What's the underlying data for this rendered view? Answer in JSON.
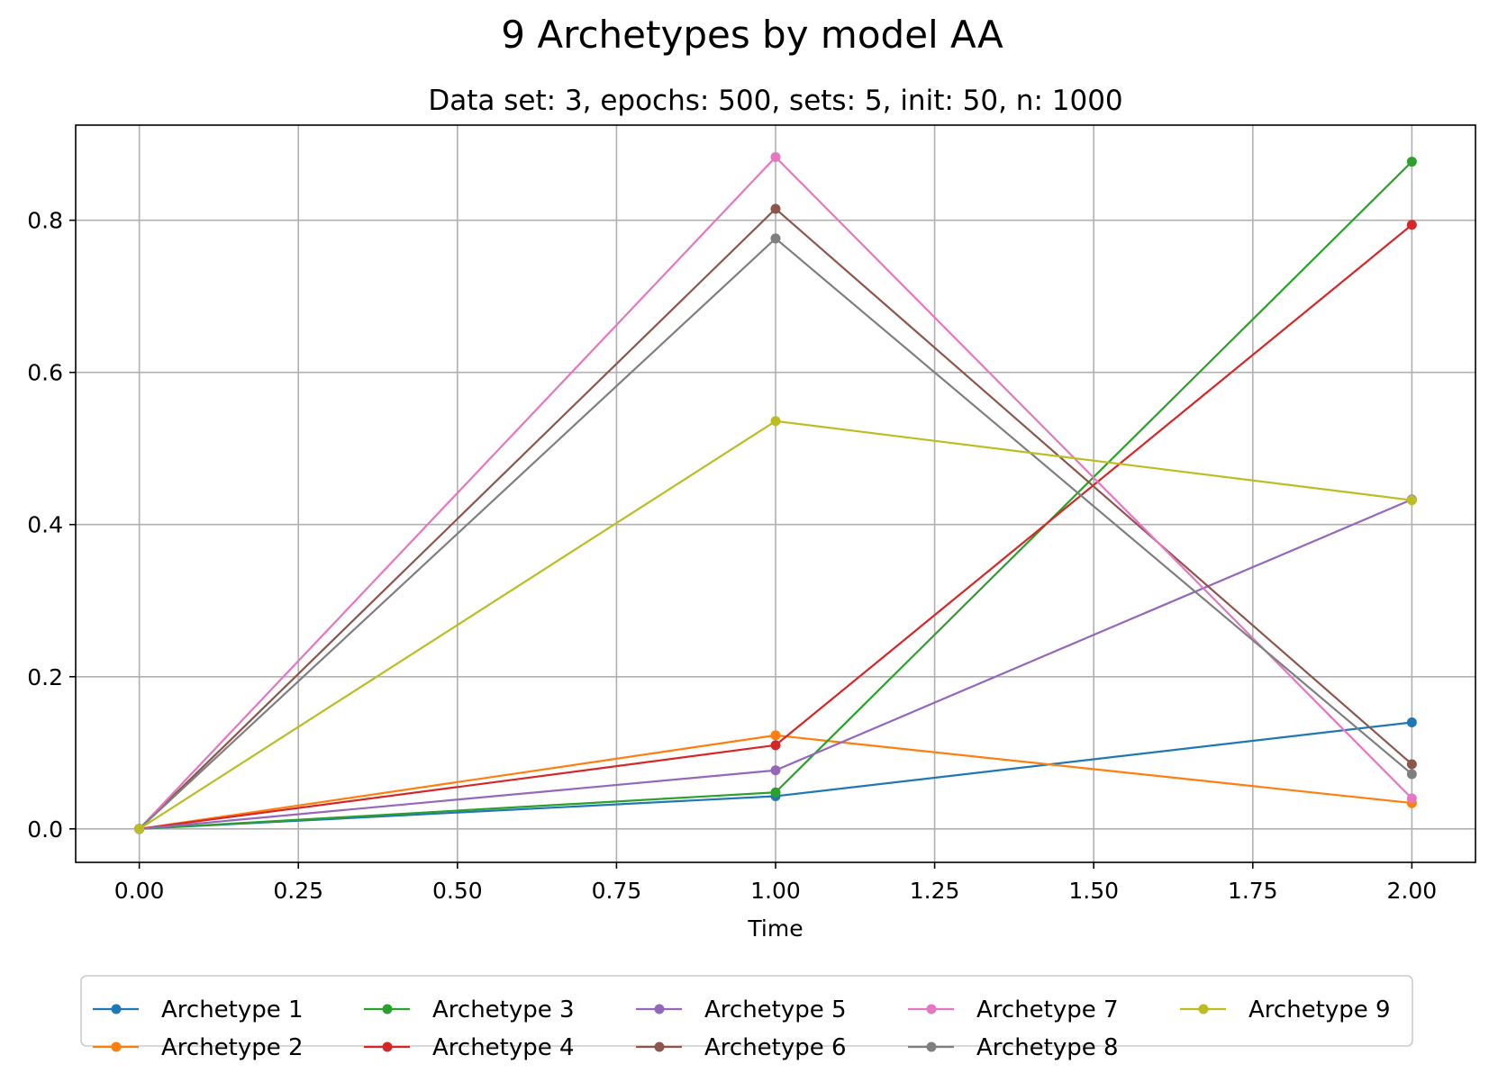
{
  "chart_data": {
    "type": "line",
    "title": "9 Archetypes by model AA",
    "subtitle": "Data set: 3, epochs: 500, sets: 5, init: 50, n: 1000",
    "xlabel": "Time",
    "ylabel": "",
    "xlim": [
      -0.1,
      2.1
    ],
    "ylim": [
      -0.044,
      0.925
    ],
    "xticks": [
      0.0,
      0.25,
      0.5,
      0.75,
      1.0,
      1.25,
      1.5,
      1.75,
      2.0
    ],
    "xtick_labels": [
      "0.00",
      "0.25",
      "0.50",
      "0.75",
      "1.00",
      "1.25",
      "1.50",
      "1.75",
      "2.00"
    ],
    "yticks": [
      0.0,
      0.2,
      0.4,
      0.6,
      0.8
    ],
    "ytick_labels": [
      "0.0",
      "0.2",
      "0.4",
      "0.6",
      "0.8"
    ],
    "grid": true,
    "legend_position": "bottom-center",
    "x": [
      0.0,
      1.0,
      2.0
    ],
    "series": [
      {
        "name": "Archetype 1",
        "color": "#1f77b4",
        "values": [
          0.0,
          0.043,
          0.14
        ]
      },
      {
        "name": "Archetype 2",
        "color": "#ff7f0e",
        "values": [
          0.0,
          0.123,
          0.034
        ]
      },
      {
        "name": "Archetype 3",
        "color": "#2ca02c",
        "values": [
          0.0,
          0.048,
          0.877
        ]
      },
      {
        "name": "Archetype 4",
        "color": "#d62728",
        "values": [
          0.0,
          0.11,
          0.794
        ]
      },
      {
        "name": "Archetype 5",
        "color": "#9467bd",
        "values": [
          0.0,
          0.077,
          0.433
        ]
      },
      {
        "name": "Archetype 6",
        "color": "#8c564b",
        "values": [
          0.0,
          0.815,
          0.085
        ]
      },
      {
        "name": "Archetype 7",
        "color": "#e377c2",
        "values": [
          0.0,
          0.883,
          0.04
        ]
      },
      {
        "name": "Archetype 8",
        "color": "#7f7f7f",
        "values": [
          0.0,
          0.776,
          0.072
        ]
      },
      {
        "name": "Archetype 9",
        "color": "#bcbd22",
        "values": [
          0.0,
          0.536,
          0.432
        ]
      }
    ]
  }
}
